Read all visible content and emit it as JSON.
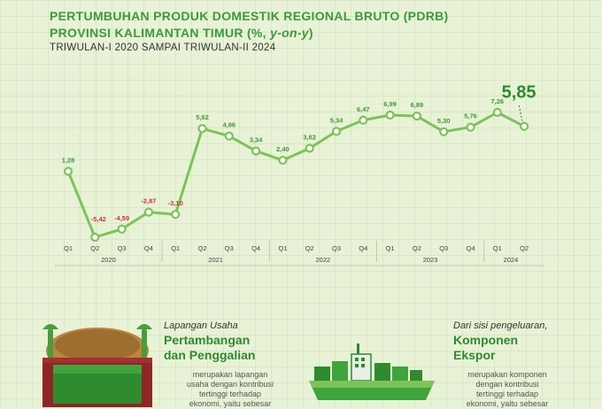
{
  "header": {
    "title_line1": "PERTUMBUHAN PRODUK DOMESTIK REGIONAL BRUTO (PDRB)",
    "title_line2_main": "PROVINSI KALIMANTAN TIMUR (%, ",
    "title_line2_italic": "y-on-y",
    "title_line2_end": ")",
    "subtitle": "TRIWULAN-I 2020 SAMPAI TRIWULAN-II 2024"
  },
  "chart_data": {
    "type": "line",
    "title": "PERTUMBUHAN PRODUK DOMESTIK REGIONAL BRUTO (PDRB) PROVINSI KALIMANTAN TIMUR (%, y-on-y)",
    "subtitle": "TRIWULAN-I 2020 SAMPAI TRIWULAN-II 2024",
    "categories": [
      "Q1",
      "Q2",
      "Q3",
      "Q4",
      "Q1",
      "Q2",
      "Q3",
      "Q4",
      "Q1",
      "Q2",
      "Q3",
      "Q4",
      "Q1",
      "Q2",
      "Q3",
      "Q4",
      "Q1",
      "Q2"
    ],
    "years": [
      {
        "label": "2020",
        "start": 0,
        "end": 3
      },
      {
        "label": "2021",
        "start": 4,
        "end": 7
      },
      {
        "label": "2022",
        "start": 8,
        "end": 11
      },
      {
        "label": "2023",
        "start": 12,
        "end": 15
      },
      {
        "label": "2024",
        "start": 16,
        "end": 17
      }
    ],
    "values": [
      1.28,
      -5.42,
      -4.59,
      -2.87,
      -3.1,
      5.62,
      4.86,
      3.34,
      2.4,
      3.62,
      5.34,
      6.47,
      6.99,
      6.89,
      5.3,
      5.76,
      7.26,
      5.85
    ],
    "labels": [
      "1,28",
      "-5,42",
      "-4,59",
      "-2,87",
      "-3,10",
      "5,62",
      "4,86",
      "3,34",
      "2,40",
      "3,62",
      "5,34",
      "6,47",
      "6,99",
      "6,89",
      "5,30",
      "5,76",
      "7,26",
      "5,85"
    ],
    "highlight_index": 17,
    "line_color": "#7cc35a",
    "negative_label_color": "#cc3333",
    "positive_label_color": "#3d9a3b"
  },
  "bottom": {
    "left": {
      "label": "Lapangan Usaha",
      "title_line1": "Pertambangan",
      "title_line2": "dan Penggalian",
      "desc_line1": "merupakan lapangan",
      "desc_line2": "usaha dengan kontribusi",
      "desc_line3": "tertinggi terhadap",
      "desc_line4": "ekonomi, yaitu sebesar"
    },
    "right": {
      "label": "Dari sisi pengeluaran,",
      "title_line1": "Komponen",
      "title_line2": "Ekspor",
      "desc_line1": "merupakan komponen",
      "desc_line2": "dengan kontribusi",
      "desc_line3": "tertinggi terhadap",
      "desc_line4": "ekonomi, yaitu sebesar"
    }
  }
}
